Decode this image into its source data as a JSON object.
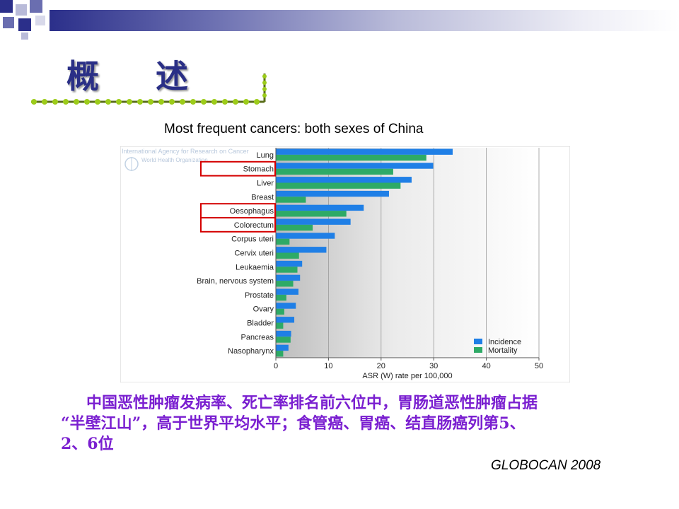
{
  "heading": "概 述",
  "chart_title": "Most frequent cancers: both sexes of China",
  "watermark": "International Agency for Research on Cancer",
  "who_logo": "World Health Organization",
  "chart_data": {
    "type": "bar",
    "orientation": "horizontal",
    "categories": [
      "Lung",
      "Stomach",
      "Liver",
      "Breast",
      "Oesophagus",
      "Colorectum",
      "Corpus uteri",
      "Cervix uteri",
      "Leukaemia",
      "Brain, nervous system",
      "Prostate",
      "Ovary",
      "Bladder",
      "Pancreas",
      "Nasopharynx"
    ],
    "series": [
      {
        "name": "Incidence",
        "color": "#1f7fe6",
        "values": [
          33.6,
          29.9,
          25.8,
          21.5,
          16.7,
          14.2,
          11.2,
          9.6,
          5.0,
          4.6,
          4.3,
          3.8,
          3.5,
          2.9,
          2.4
        ]
      },
      {
        "name": "Mortality",
        "color": "#2eaa66",
        "values": [
          28.6,
          22.3,
          23.7,
          5.7,
          13.4,
          7.0,
          2.6,
          4.4,
          4.1,
          3.3,
          2.0,
          1.6,
          1.4,
          2.8,
          1.4
        ]
      }
    ],
    "xlabel": "ASR (W) rate per 100,000",
    "xlim": [
      0,
      50
    ],
    "xticks": [
      0,
      10,
      20,
      30,
      40,
      50
    ],
    "grid": true,
    "legend": "bottom-right",
    "highlighted": [
      "Stomach",
      "Oesophagus",
      "Colorectum"
    ],
    "highlight_color": "#d40000"
  },
  "caption": {
    "line1": "中国恶性肿瘤发病率、死亡率排名前六位中，胃肠道恶性肿瘤占据",
    "line2": "“半壁江山”，高于世界平均水平；食管癌、胃癌、结直肠癌列第5、",
    "line3": "2、6位"
  },
  "source": "GLOBOCAN 2008"
}
